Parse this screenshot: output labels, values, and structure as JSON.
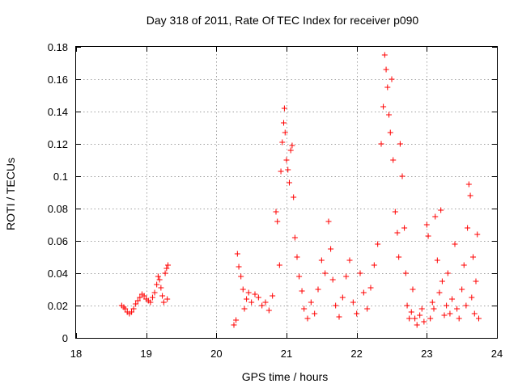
{
  "chart_data": {
    "type": "scatter",
    "title": "Day 318 of 2011, Rate Of TEC Index for receiver p090",
    "xlabel": "GPS time / hours",
    "ylabel": "ROTI / TECUs",
    "xlim": [
      18,
      24
    ],
    "ylim": [
      0,
      0.18
    ],
    "xticks": [
      18,
      19,
      20,
      21,
      22,
      23,
      24
    ],
    "xtick_labels": [
      "18",
      "19",
      "20",
      "21",
      "22",
      "23",
      "24"
    ],
    "yticks": [
      0,
      0.02,
      0.04,
      0.06,
      0.08,
      0.1,
      0.12,
      0.14,
      0.16,
      0.18
    ],
    "ytick_labels": [
      "0",
      "0.02",
      "0.04",
      "0.06",
      "0.08",
      "0.1",
      "0.12",
      "0.14",
      "0.16",
      "0.18"
    ],
    "grid": true,
    "marker": "+",
    "color": "#ff0000",
    "series": [
      {
        "name": "ROTI",
        "points": [
          [
            18.65,
            0.02
          ],
          [
            18.68,
            0.019
          ],
          [
            18.7,
            0.018
          ],
          [
            18.73,
            0.016
          ],
          [
            18.76,
            0.015
          ],
          [
            18.79,
            0.016
          ],
          [
            18.82,
            0.018
          ],
          [
            18.85,
            0.021
          ],
          [
            18.88,
            0.023
          ],
          [
            18.91,
            0.025
          ],
          [
            18.94,
            0.027
          ],
          [
            18.97,
            0.026
          ],
          [
            19.0,
            0.024
          ],
          [
            19.03,
            0.023
          ],
          [
            19.06,
            0.022
          ],
          [
            19.09,
            0.025
          ],
          [
            19.12,
            0.028
          ],
          [
            19.15,
            0.033
          ],
          [
            19.17,
            0.038
          ],
          [
            19.19,
            0.036
          ],
          [
            19.21,
            0.031
          ],
          [
            19.23,
            0.026
          ],
          [
            19.25,
            0.022
          ],
          [
            19.27,
            0.04
          ],
          [
            19.29,
            0.043
          ],
          [
            19.31,
            0.045
          ],
          [
            19.3,
            0.024
          ],
          [
            20.25,
            0.008
          ],
          [
            20.28,
            0.011
          ],
          [
            20.3,
            0.052
          ],
          [
            20.32,
            0.044
          ],
          [
            20.35,
            0.038
          ],
          [
            20.38,
            0.03
          ],
          [
            20.4,
            0.018
          ],
          [
            20.43,
            0.024
          ],
          [
            20.46,
            0.028
          ],
          [
            20.5,
            0.022
          ],
          [
            20.55,
            0.027
          ],
          [
            20.6,
            0.025
          ],
          [
            20.65,
            0.02
          ],
          [
            20.7,
            0.022
          ],
          [
            20.75,
            0.017
          ],
          [
            20.8,
            0.026
          ],
          [
            20.85,
            0.078
          ],
          [
            20.87,
            0.072
          ],
          [
            20.9,
            0.045
          ],
          [
            20.92,
            0.103
          ],
          [
            20.94,
            0.121
          ],
          [
            20.96,
            0.133
          ],
          [
            20.97,
            0.142
          ],
          [
            20.98,
            0.127
          ],
          [
            21.0,
            0.11
          ],
          [
            21.02,
            0.104
          ],
          [
            21.04,
            0.096
          ],
          [
            21.06,
            0.116
          ],
          [
            21.08,
            0.119
          ],
          [
            21.1,
            0.087
          ],
          [
            21.12,
            0.062
          ],
          [
            21.15,
            0.05
          ],
          [
            21.18,
            0.038
          ],
          [
            21.22,
            0.029
          ],
          [
            21.25,
            0.018
          ],
          [
            21.3,
            0.012
          ],
          [
            21.35,
            0.022
          ],
          [
            21.4,
            0.015
          ],
          [
            21.45,
            0.03
          ],
          [
            21.5,
            0.048
          ],
          [
            21.55,
            0.04
          ],
          [
            21.6,
            0.072
          ],
          [
            21.63,
            0.055
          ],
          [
            21.66,
            0.036
          ],
          [
            21.7,
            0.02
          ],
          [
            21.75,
            0.013
          ],
          [
            21.8,
            0.025
          ],
          [
            21.85,
            0.038
          ],
          [
            21.9,
            0.048
          ],
          [
            21.95,
            0.022
          ],
          [
            22.0,
            0.015
          ],
          [
            22.05,
            0.04
          ],
          [
            22.1,
            0.028
          ],
          [
            22.15,
            0.018
          ],
          [
            22.2,
            0.031
          ],
          [
            22.25,
            0.045
          ],
          [
            22.3,
            0.058
          ],
          [
            22.35,
            0.12
          ],
          [
            22.38,
            0.143
          ],
          [
            22.4,
            0.175
          ],
          [
            22.42,
            0.166
          ],
          [
            22.44,
            0.155
          ],
          [
            22.46,
            0.138
          ],
          [
            22.48,
            0.127
          ],
          [
            22.5,
            0.16
          ],
          [
            22.52,
            0.11
          ],
          [
            22.55,
            0.078
          ],
          [
            22.58,
            0.065
          ],
          [
            22.6,
            0.05
          ],
          [
            22.62,
            0.12
          ],
          [
            22.65,
            0.1
          ],
          [
            22.68,
            0.068
          ],
          [
            22.7,
            0.04
          ],
          [
            22.72,
            0.02
          ],
          [
            22.75,
            0.012
          ],
          [
            22.78,
            0.016
          ],
          [
            22.8,
            0.03
          ],
          [
            22.83,
            0.012
          ],
          [
            22.86,
            0.008
          ],
          [
            22.9,
            0.014
          ],
          [
            22.93,
            0.018
          ],
          [
            22.96,
            0.01
          ],
          [
            23.0,
            0.07
          ],
          [
            23.02,
            0.063
          ],
          [
            23.05,
            0.012
          ],
          [
            23.08,
            0.022
          ],
          [
            23.1,
            0.018
          ],
          [
            23.12,
            0.075
          ],
          [
            23.15,
            0.048
          ],
          [
            23.18,
            0.028
          ],
          [
            23.2,
            0.079
          ],
          [
            23.22,
            0.035
          ],
          [
            23.25,
            0.014
          ],
          [
            23.28,
            0.02
          ],
          [
            23.3,
            0.04
          ],
          [
            23.33,
            0.015
          ],
          [
            23.36,
            0.024
          ],
          [
            23.4,
            0.058
          ],
          [
            23.43,
            0.018
          ],
          [
            23.46,
            0.012
          ],
          [
            23.5,
            0.03
          ],
          [
            23.53,
            0.045
          ],
          [
            23.56,
            0.02
          ],
          [
            23.58,
            0.068
          ],
          [
            23.6,
            0.095
          ],
          [
            23.62,
            0.088
          ],
          [
            23.64,
            0.025
          ],
          [
            23.66,
            0.05
          ],
          [
            23.68,
            0.015
          ],
          [
            23.7,
            0.035
          ],
          [
            23.72,
            0.064
          ],
          [
            23.74,
            0.012
          ]
        ]
      }
    ]
  }
}
